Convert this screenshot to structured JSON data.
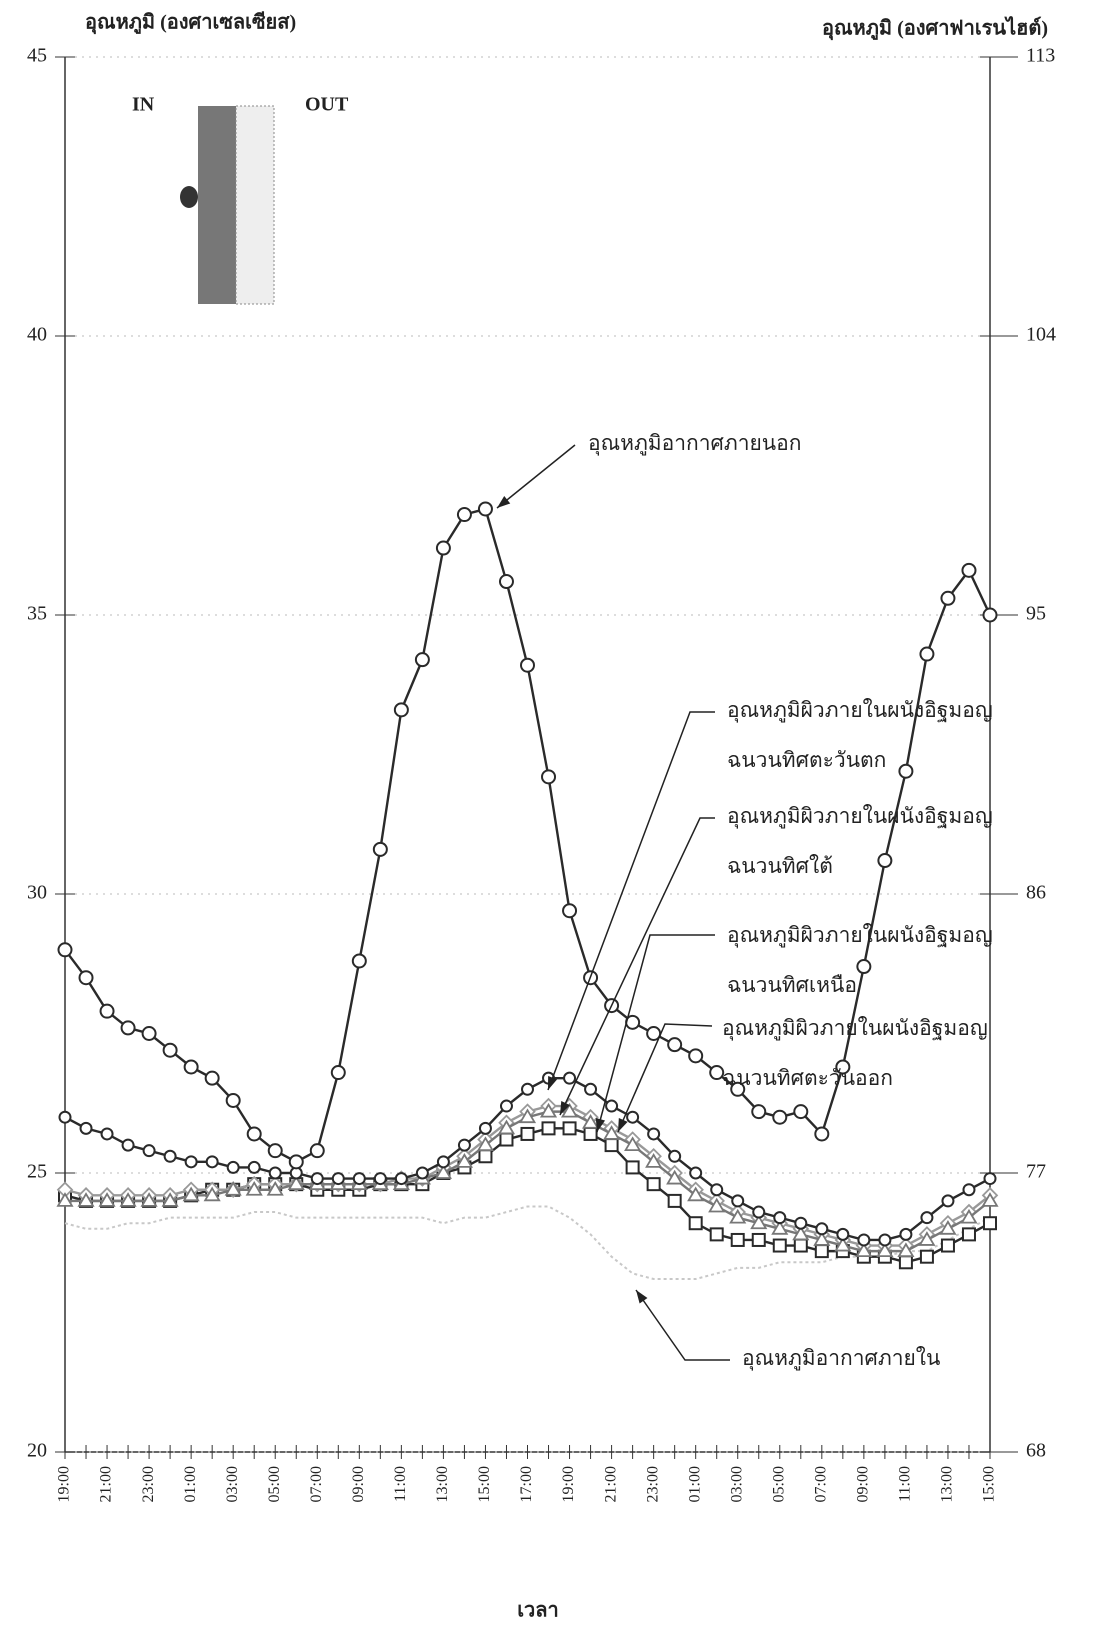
{
  "chart_data": {
    "type": "line",
    "ylabel": "อุณหภูมิ (องศาเซลเซียส)",
    "y2label": "อุณหภูมิ (องศาฟาเรนไฮต์)",
    "xlabel": "เวลา",
    "inset": {
      "in": "IN",
      "out": "OUT"
    },
    "categories": [
      "19:00",
      null,
      "21:00",
      null,
      "23:00",
      null,
      "01:00",
      null,
      "03:00",
      null,
      "05:00",
      null,
      "07:00",
      null,
      "09:00",
      null,
      "11:00",
      null,
      "13:00",
      null,
      "15:00",
      null,
      "17:00",
      null,
      "19:00",
      null,
      "21:00",
      null,
      "23:00",
      null,
      "01:00",
      null,
      "03:00",
      null,
      "05:00",
      null,
      "07:00",
      null,
      "09:00",
      null,
      "11:00",
      null,
      "13:00",
      null,
      "15:00"
    ],
    "ylim": [
      20,
      45
    ],
    "yticks": [
      20,
      25,
      30,
      35,
      40,
      45
    ],
    "y2lim": [
      68,
      113
    ],
    "y2ticks": [
      68,
      77,
      86,
      95,
      104,
      113
    ],
    "grid": true,
    "series": [
      {
        "label": [
          "อุณหภูมิอากาศภายนอก"
        ],
        "color": "#2a2a2a",
        "marker": "circle",
        "values": [
          29.0,
          28.5,
          27.9,
          27.6,
          27.5,
          27.2,
          26.9,
          26.7,
          26.3,
          25.7,
          25.4,
          25.2,
          25.4,
          26.8,
          28.8,
          30.8,
          33.3,
          34.2,
          36.2,
          36.8,
          36.9,
          35.6,
          34.1,
          32.1,
          29.7,
          28.5,
          28.0,
          27.7,
          27.5,
          27.3,
          27.1,
          26.8,
          26.5,
          26.1,
          26.0,
          26.1,
          25.7,
          26.9,
          28.7,
          30.6,
          32.2,
          34.3,
          35.3,
          35.8,
          35.0
        ]
      },
      {
        "label": [
          "อุณหภูมิผิวภายในผนังอิฐมอญ",
          "ฉนวนทิศตะวันตก"
        ],
        "color": "#2a2a2a",
        "marker": "circle",
        "values": [
          26.0,
          25.8,
          25.7,
          25.5,
          25.4,
          25.3,
          25.2,
          25.2,
          25.1,
          25.1,
          25.0,
          25.0,
          24.9,
          24.9,
          24.9,
          24.9,
          24.9,
          25.0,
          25.2,
          25.5,
          25.8,
          26.2,
          26.5,
          26.7,
          26.7,
          26.5,
          26.2,
          26.0,
          25.7,
          25.3,
          25.0,
          24.7,
          24.5,
          24.3,
          24.2,
          24.1,
          24.0,
          23.9,
          23.8,
          23.8,
          23.9,
          24.2,
          24.5,
          24.7,
          24.9
        ]
      },
      {
        "label": [
          "อุณหภูมิผิวภายในผนังอิฐมอญ",
          "ฉนวนทิศใต้"
        ],
        "color": "#777777",
        "marker": "triangle",
        "values": [
          24.5,
          24.5,
          24.5,
          24.5,
          24.5,
          24.5,
          24.6,
          24.6,
          24.7,
          24.7,
          24.7,
          24.8,
          24.8,
          24.8,
          24.8,
          24.8,
          24.8,
          24.9,
          25.0,
          25.2,
          25.5,
          25.8,
          26.0,
          26.1,
          26.1,
          25.9,
          25.7,
          25.5,
          25.2,
          24.9,
          24.6,
          24.4,
          24.2,
          24.1,
          24.0,
          23.9,
          23.8,
          23.7,
          23.6,
          23.6,
          23.6,
          23.8,
          24.0,
          24.2,
          24.5
        ]
      },
      {
        "label": [
          "อุณหภูมิผิวภายในผนังอิฐมอญ",
          "ฉนวนทิศเหนือ"
        ],
        "color": "#999999",
        "marker": "diamond",
        "values": [
          24.7,
          24.6,
          24.6,
          24.6,
          24.6,
          24.6,
          24.7,
          24.7,
          24.7,
          24.8,
          24.8,
          24.8,
          24.8,
          24.8,
          24.8,
          24.8,
          24.9,
          24.9,
          25.1,
          25.3,
          25.6,
          25.9,
          26.1,
          26.2,
          26.2,
          26.0,
          25.8,
          25.6,
          25.3,
          25.0,
          24.7,
          24.5,
          24.3,
          24.2,
          24.1,
          24.0,
          23.9,
          23.8,
          23.7,
          23.7,
          23.7,
          23.9,
          24.1,
          24.3,
          24.6
        ]
      },
      {
        "label": [
          "อุณหภูมิผิวภายในผนังอิฐมอญ",
          "ฉนวนทิศตะวันออก"
        ],
        "color": "#2a2a2a",
        "marker": "square",
        "values": [
          24.6,
          24.5,
          24.5,
          24.5,
          24.5,
          24.5,
          24.6,
          24.7,
          24.7,
          24.8,
          24.8,
          24.8,
          24.7,
          24.7,
          24.7,
          24.8,
          24.8,
          24.8,
          25.0,
          25.1,
          25.3,
          25.6,
          25.7,
          25.8,
          25.8,
          25.7,
          25.5,
          25.1,
          24.8,
          24.5,
          24.1,
          23.9,
          23.8,
          23.8,
          23.7,
          23.7,
          23.6,
          23.6,
          23.5,
          23.5,
          23.4,
          23.5,
          23.7,
          23.9,
          24.1
        ]
      },
      {
        "label": [
          "อุณหภูมิอากาศภายใน"
        ],
        "color": "#c8c8c8",
        "marker": "none",
        "values": [
          24.1,
          24.0,
          24.0,
          24.1,
          24.1,
          24.2,
          24.2,
          24.2,
          24.2,
          24.3,
          24.3,
          24.2,
          24.2,
          24.2,
          24.2,
          24.2,
          24.2,
          24.2,
          24.1,
          24.2,
          24.2,
          24.3,
          24.4,
          24.4,
          24.2,
          23.9,
          23.5,
          23.2,
          23.1,
          23.1,
          23.1,
          23.2,
          23.3,
          23.3,
          23.4,
          23.4,
          23.4,
          23.5,
          23.5,
          23.5,
          23.6,
          23.6,
          23.8,
          24.0,
          24.2
        ]
      }
    ]
  }
}
